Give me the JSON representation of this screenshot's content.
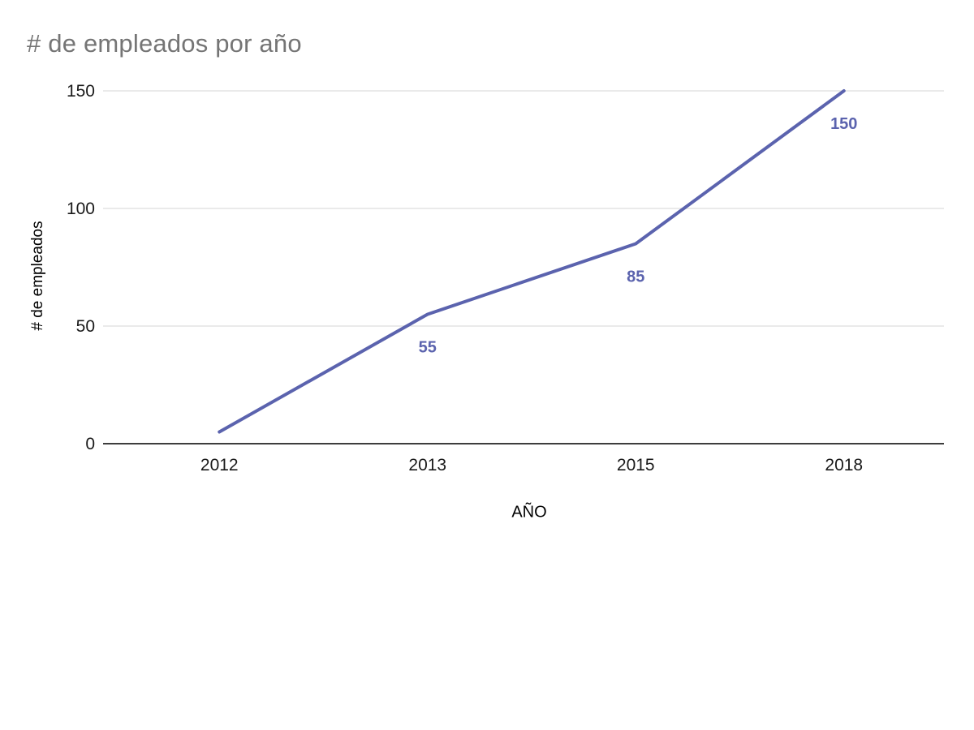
{
  "chart_data": {
    "type": "line",
    "title": "# de empleados por año",
    "xlabel": "AÑO",
    "ylabel": "# de empleados",
    "categories": [
      "2012",
      "2013",
      "2015",
      "2018"
    ],
    "series": [
      {
        "name": "# de empleados",
        "values": [
          5,
          55,
          85,
          150
        ],
        "point_labels": [
          "",
          "55",
          "85",
          "150"
        ],
        "color": "#5b63ae"
      }
    ],
    "ylim": [
      0,
      150
    ],
    "yticks": [
      0,
      50,
      100,
      150
    ],
    "grid": "horizontal",
    "legend": "none"
  },
  "colors": {
    "background": "#ffffff",
    "title": "#757575",
    "axis_text": "#1a1a1a",
    "gridline": "#e4e4e4",
    "axis_line": "#3d3d3d",
    "data_label": "#5b63ae"
  }
}
